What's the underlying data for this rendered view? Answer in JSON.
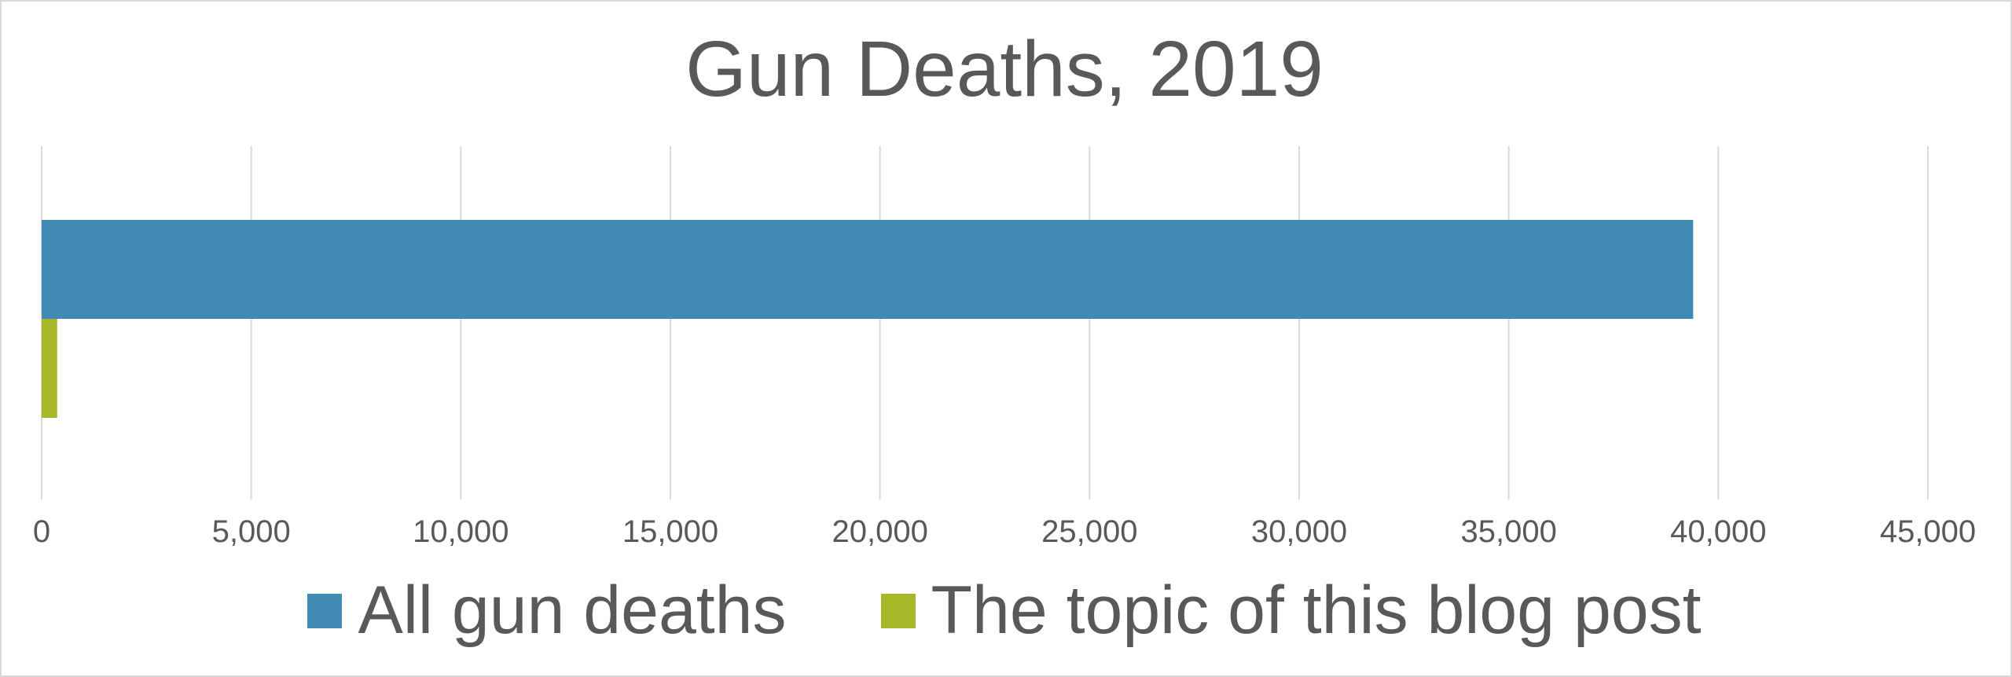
{
  "chart_data": {
    "type": "bar",
    "orientation": "horizontal",
    "title": "Gun Deaths, 2019",
    "xlabel": "",
    "ylabel": "",
    "xlim": [
      0,
      45000
    ],
    "xticks": [
      0,
      5000,
      10000,
      15000,
      20000,
      25000,
      30000,
      35000,
      40000,
      45000
    ],
    "xtick_labels": [
      "0",
      "5,000",
      "10,000",
      "15,000",
      "20,000",
      "25,000",
      "30,000",
      "35,000",
      "40,000",
      "45,000"
    ],
    "grid": "vertical",
    "legend_position": "bottom",
    "series": [
      {
        "name": "All gun deaths",
        "values": [
          39400
        ],
        "color": "#418ab3"
      },
      {
        "name": "The topic of this blog post",
        "values": [
          370
        ],
        "color": "#a6b727"
      }
    ]
  }
}
